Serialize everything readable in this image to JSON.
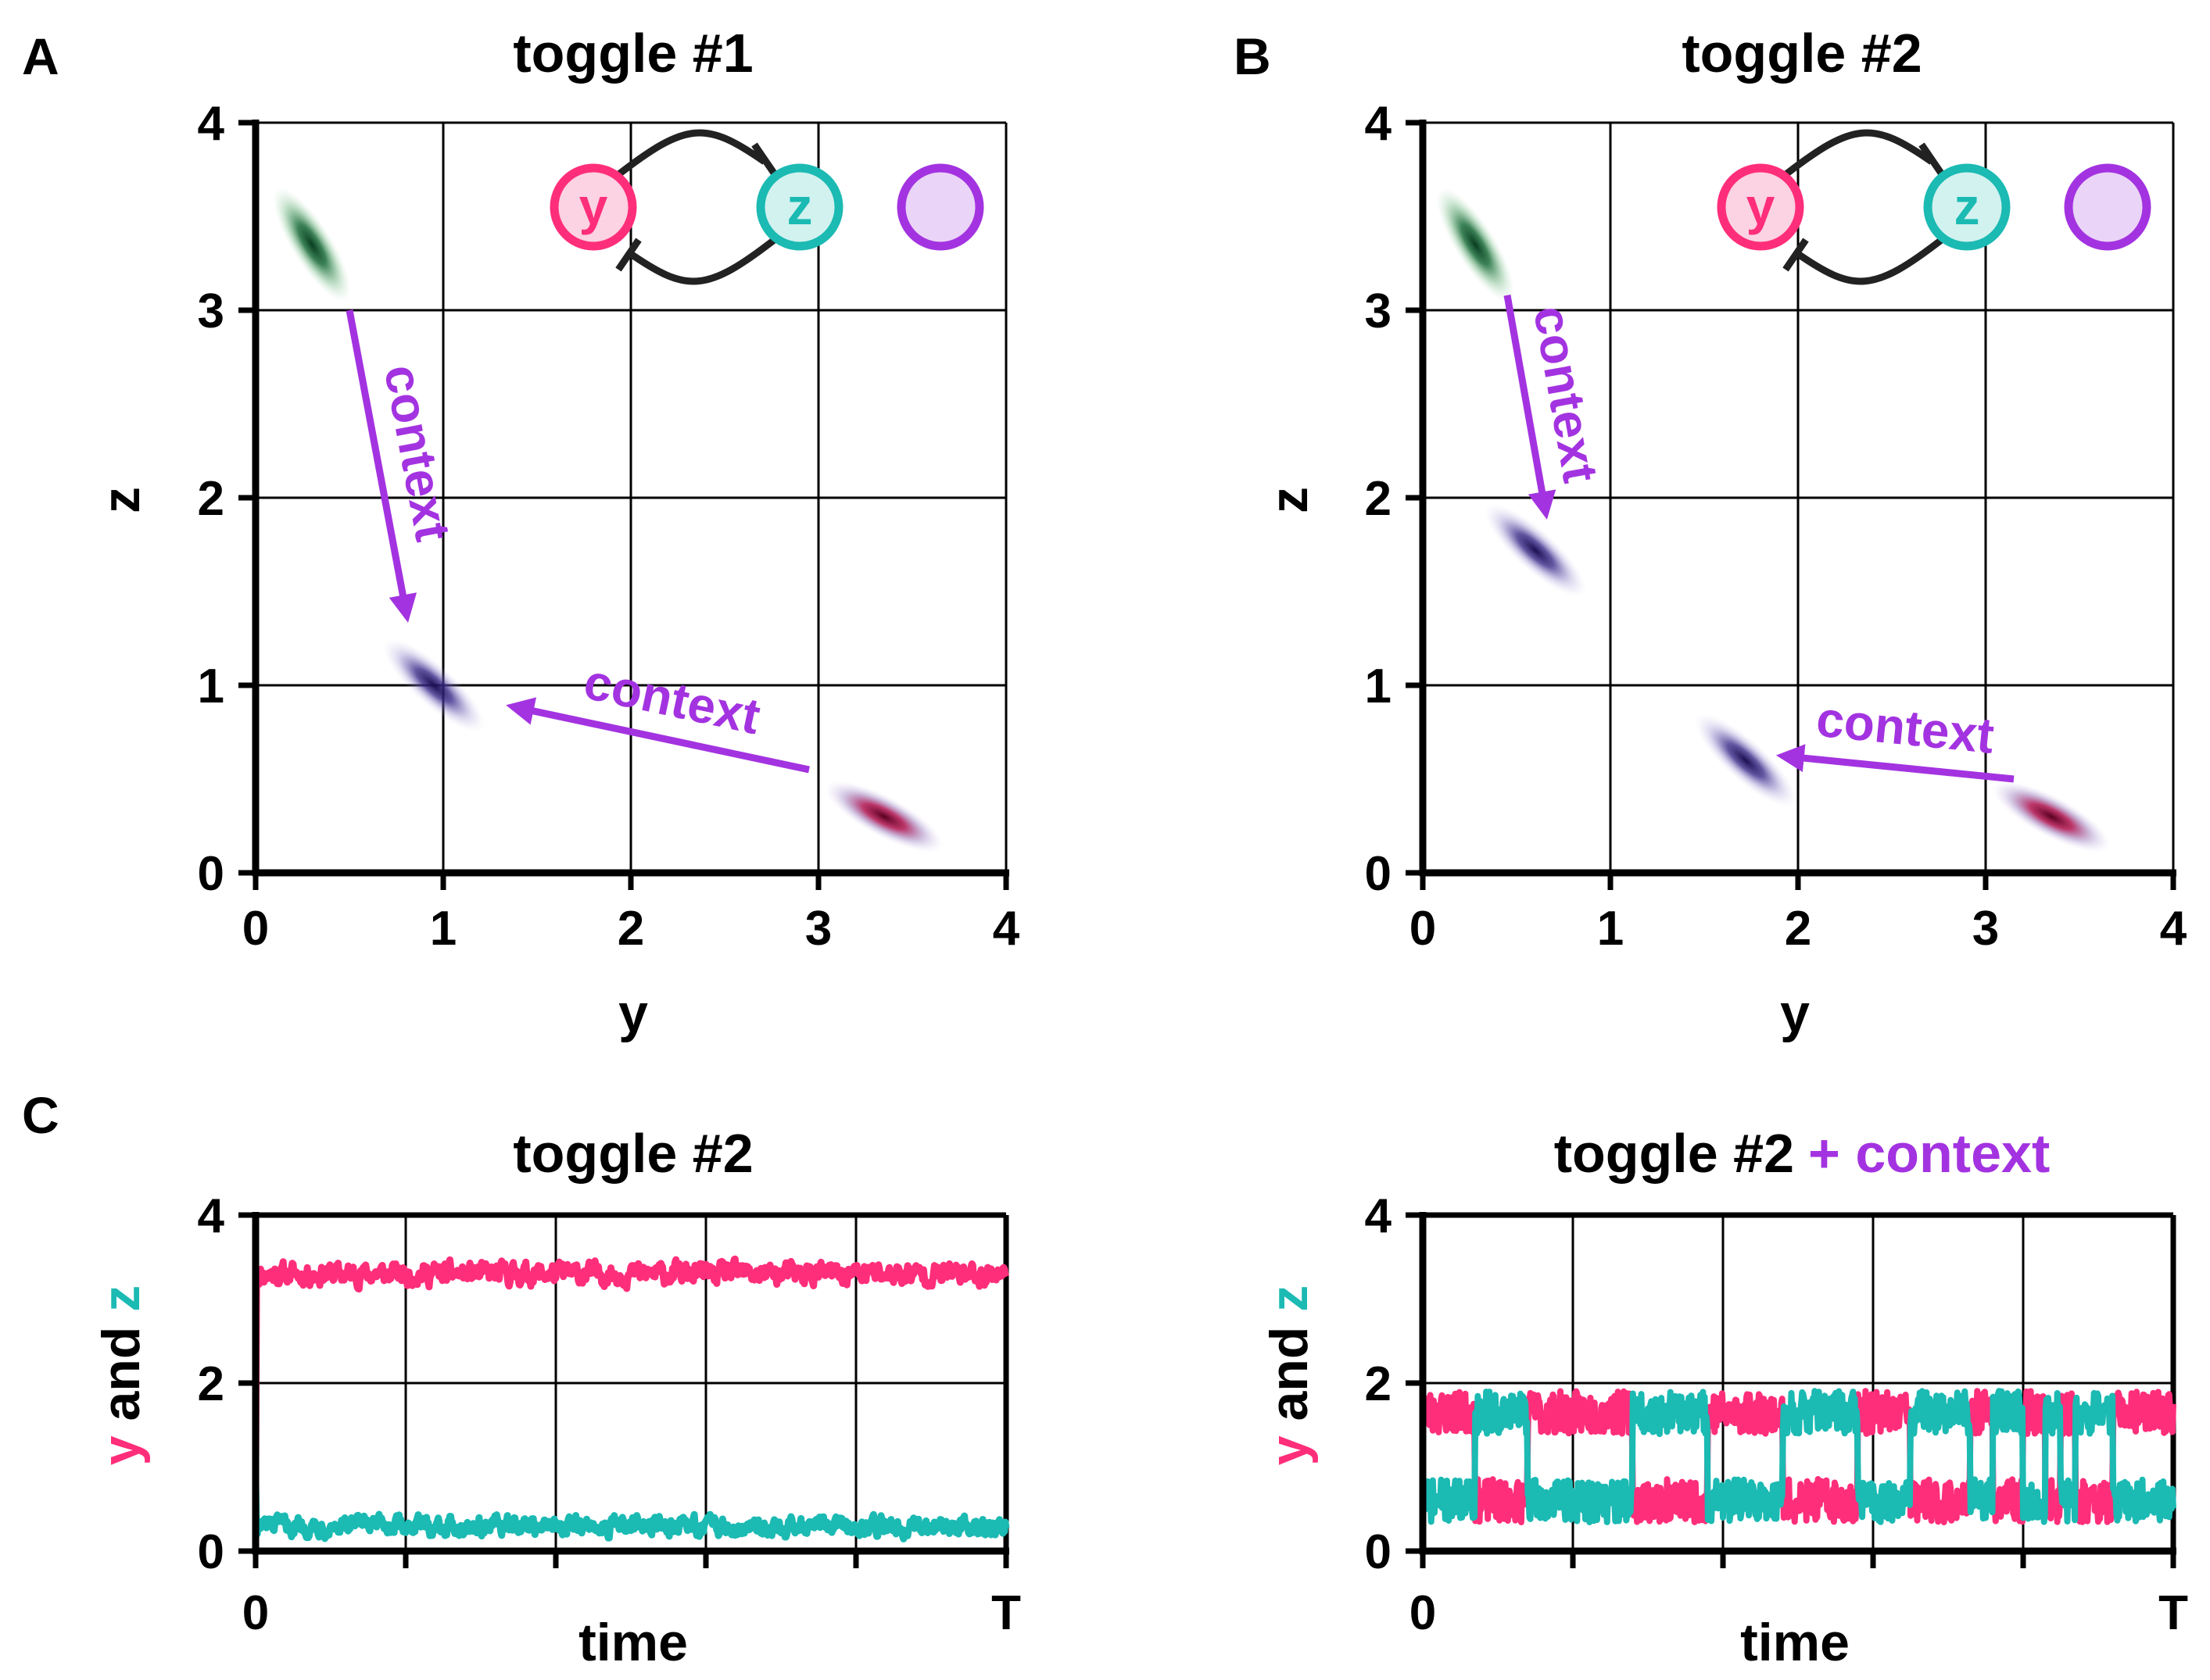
{
  "colors": {
    "y": "#ff2e7a",
    "z": "#1bbab3",
    "context": "#a333e0",
    "basin_green": "#0b4d2a",
    "basin_mid": "#2a1a6e",
    "basin_red": "#8c0a3a",
    "motif_line": "#222222"
  },
  "chart_data": [
    {
      "id": "A",
      "panel_label": "A",
      "type": "scatter",
      "title": "toggle #1",
      "xlabel": "y",
      "ylabel": "z",
      "xlim": [
        0,
        4
      ],
      "ylim": [
        0,
        4
      ],
      "xticks": [
        "0",
        "1",
        "2",
        "3",
        "4"
      ],
      "yticks": [
        "0",
        "1",
        "2",
        "3",
        "4"
      ],
      "grid": true,
      "basins": [
        {
          "name": "green-state",
          "y": 0.3,
          "z": 3.35,
          "color_key": "basin_green"
        },
        {
          "name": "middle-state",
          "y": 0.95,
          "z": 1.0,
          "color_key": "basin_mid"
        },
        {
          "name": "red-state",
          "y": 3.35,
          "z": 0.3,
          "color_key": "basin_red"
        }
      ],
      "annotations": [
        {
          "label": "context",
          "from": [
            0.5,
            3.0
          ],
          "to": [
            0.8,
            1.4
          ]
        },
        {
          "label": "context",
          "from": [
            2.95,
            0.55
          ],
          "to": [
            1.4,
            0.88
          ]
        }
      ],
      "motif": {
        "node_y": "y",
        "node_z": "z"
      }
    },
    {
      "id": "B",
      "panel_label": "B",
      "type": "scatter",
      "title": "toggle #2",
      "xlabel": "y",
      "ylabel": "z",
      "xlim": [
        0,
        4
      ],
      "ylim": [
        0,
        4
      ],
      "xticks": [
        "0",
        "1",
        "2",
        "3",
        "4"
      ],
      "yticks": [
        "0",
        "1",
        "2",
        "3",
        "4"
      ],
      "grid": true,
      "basins": [
        {
          "name": "green-state",
          "y": 0.28,
          "z": 3.35,
          "color_key": "basin_green"
        },
        {
          "name": "upper-mid-state",
          "y": 0.6,
          "z": 1.72,
          "color_key": "basin_mid"
        },
        {
          "name": "lower-mid-state",
          "y": 1.72,
          "z": 0.6,
          "color_key": "basin_mid"
        },
        {
          "name": "red-state",
          "y": 3.35,
          "z": 0.3,
          "color_key": "basin_red"
        }
      ],
      "annotations": [
        {
          "label": "context",
          "from": [
            0.45,
            3.08
          ],
          "to": [
            0.65,
            1.95
          ]
        },
        {
          "label": "context",
          "from": [
            3.15,
            0.5
          ],
          "to": [
            1.95,
            0.62
          ]
        }
      ],
      "motif": {
        "node_y": "y",
        "node_z": "z"
      }
    },
    {
      "id": "C-left",
      "panel_label": "C",
      "type": "line",
      "title": "toggle #2",
      "xlabel": "time",
      "ylabel_parts": [
        "y",
        " and ",
        "z"
      ],
      "x_tick_start": "0",
      "x_tick_end": "T",
      "ylim": [
        0,
        4
      ],
      "yticks": [
        "0",
        "2",
        "4"
      ],
      "grid": true,
      "series": [
        {
          "name": "y",
          "color_key": "y",
          "start": 1.0,
          "mean": 3.3,
          "noise": 0.14,
          "switches": []
        },
        {
          "name": "z",
          "color_key": "z",
          "start": 0.8,
          "mean": 0.3,
          "noise": 0.12,
          "switches": []
        }
      ]
    },
    {
      "id": "C-right",
      "type": "line",
      "title": "toggle #2",
      "title_suffix": "+ context",
      "xlabel": "time",
      "ylabel_parts": [
        "y",
        " and ",
        "z"
      ],
      "x_tick_start": "0",
      "x_tick_end": "T",
      "ylim": [
        0,
        4
      ],
      "yticks": [
        "0",
        "2",
        "4"
      ],
      "grid": true,
      "high_level": 1.65,
      "low_level": 0.6,
      "noise": 0.16,
      "switch_times": [
        0.07,
        0.14,
        0.28,
        0.38,
        0.48,
        0.58,
        0.65,
        0.73,
        0.76,
        0.8,
        0.83,
        0.85,
        0.87,
        0.92
      ],
      "y_starts_high": true
    }
  ]
}
